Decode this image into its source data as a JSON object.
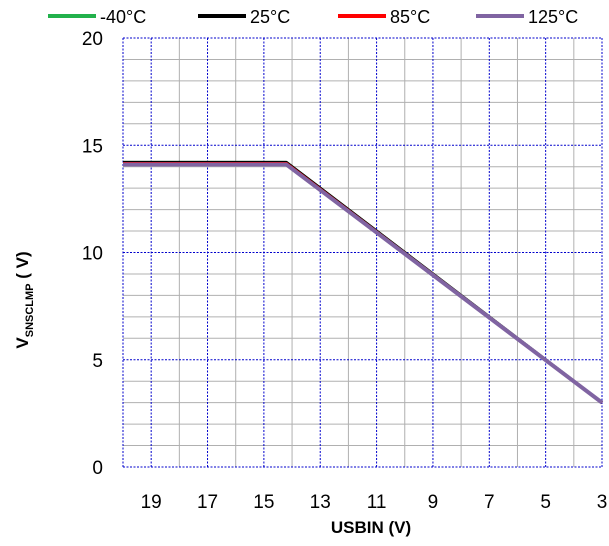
{
  "chart_data": {
    "type": "line",
    "title": "",
    "xlabel": "USBIN (V)",
    "ylabel": "VSNSCLMP ( V)",
    "ylabel_main": "V",
    "ylabel_sub": "SNSCLMP",
    "ylabel_unit": " ( V)",
    "x_reversed": true,
    "xlim": [
      20,
      3
    ],
    "ylim": [
      0,
      20
    ],
    "x_ticks": [
      19,
      17,
      15,
      13,
      11,
      9,
      7,
      5,
      3
    ],
    "y_ticks": [
      0,
      5,
      10,
      15,
      20
    ],
    "grid": true,
    "grid_color": "#0000cc",
    "minor_grid_color": "#b0b0b0",
    "legend_position": "top",
    "series": [
      {
        "name": "-40°C",
        "color": "#22b14c",
        "x": [
          20,
          14.2,
          3
        ],
        "y": [
          14.2,
          14.2,
          3.0
        ]
      },
      {
        "name": "25°C",
        "color": "#000000",
        "x": [
          20,
          14.2,
          3
        ],
        "y": [
          14.2,
          14.2,
          3.0
        ]
      },
      {
        "name": "85°C",
        "color": "#ff0000",
        "x": [
          20,
          14.2,
          3
        ],
        "y": [
          14.15,
          14.15,
          3.0
        ]
      },
      {
        "name": "125°C",
        "color": "#8064a2",
        "x": [
          20,
          14.2,
          3
        ],
        "y": [
          14.1,
          14.1,
          3.0
        ]
      }
    ]
  }
}
